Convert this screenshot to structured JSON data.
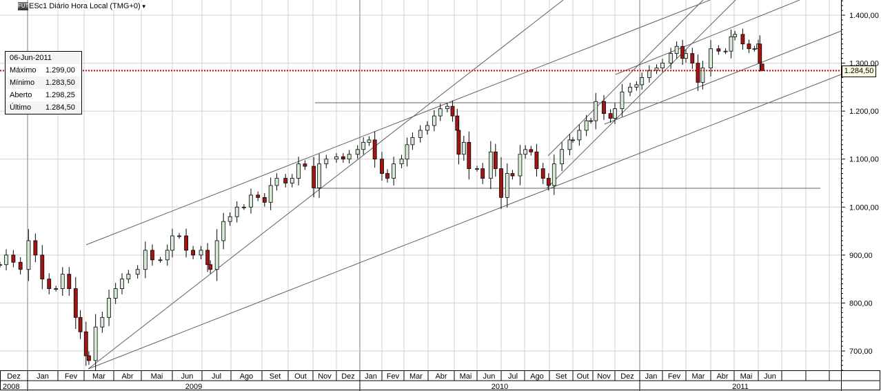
{
  "header": {
    "badge": "FUT",
    "title": "ESc1 Diário Hora Local (TMG+0)",
    "dropdown_icon": "caret-down-icon"
  },
  "info_box": {
    "date": "06-Jun-2011",
    "rows": [
      {
        "label": "Máximo",
        "value": "1.299,00"
      },
      {
        "label": "Mínimo",
        "value": "1.283,50"
      },
      {
        "label": "Aberto",
        "value": "1.298,25"
      },
      {
        "label": "Último",
        "value": "1.284,50"
      }
    ]
  },
  "current_price_label": "1.284,50",
  "colors": {
    "up": "#d6ead6",
    "down": "#a31515",
    "last_price_line": "#cc0000",
    "grid": "#d0d0d0",
    "trendline": "#606060"
  },
  "chart_data": {
    "type": "candlestick",
    "title": "ESc1 Diário Hora Local (TMG+0)",
    "ylim": [
      660,
      1431
    ],
    "y_ticks": [
      700,
      800,
      900,
      1000,
      1100,
      1200,
      1300,
      1400
    ],
    "y_tick_labels": [
      "700,00",
      "800,00",
      "900,00",
      "1.000,00",
      "1.100,00",
      "1.200,00",
      "1.300,00",
      "1.400,00"
    ],
    "grid": true,
    "last_price": 1284.5,
    "months": [
      {
        "key": "2008-12",
        "label": "Dez"
      },
      {
        "key": "2009-01",
        "label": "Jan"
      },
      {
        "key": "2009-02",
        "label": "Fev"
      },
      {
        "key": "2009-03",
        "label": "Mar"
      },
      {
        "key": "2009-04",
        "label": "Abr"
      },
      {
        "key": "2009-05",
        "label": "Mai"
      },
      {
        "key": "2009-06",
        "label": "Jun"
      },
      {
        "key": "2009-07",
        "label": "Jul"
      },
      {
        "key": "2009-08",
        "label": "Ago"
      },
      {
        "key": "2009-09",
        "label": "Set"
      },
      {
        "key": "2009-10",
        "label": "Out"
      },
      {
        "key": "2009-11",
        "label": "Nov"
      },
      {
        "key": "2009-12",
        "label": "Dez"
      },
      {
        "key": "2010-01",
        "label": "Jan"
      },
      {
        "key": "2010-02",
        "label": "Fev"
      },
      {
        "key": "2010-03",
        "label": "Mar"
      },
      {
        "key": "2010-04",
        "label": "Abr"
      },
      {
        "key": "2010-05",
        "label": "Mai"
      },
      {
        "key": "2010-06",
        "label": "Jun"
      },
      {
        "key": "2010-07",
        "label": "Jul"
      },
      {
        "key": "2010-08",
        "label": "Ago"
      },
      {
        "key": "2010-09",
        "label": "Set"
      },
      {
        "key": "2010-10",
        "label": "Out"
      },
      {
        "key": "2010-11",
        "label": "Nov"
      },
      {
        "key": "2010-12",
        "label": "Dez"
      },
      {
        "key": "2011-01",
        "label": "Jan"
      },
      {
        "key": "2011-02",
        "label": "Fev"
      },
      {
        "key": "2011-03",
        "label": "Mar"
      },
      {
        "key": "2011-04",
        "label": "Abr"
      },
      {
        "key": "2011-05",
        "label": "Mai"
      },
      {
        "key": "2011-06",
        "label": "Jun"
      },
      {
        "key": "2011-07",
        "label": ""
      },
      {
        "key": "2011-08",
        "label": ""
      },
      {
        "key": "2011-09",
        "label": ""
      }
    ],
    "years": [
      "2008",
      "2009",
      "2010",
      "2011"
    ],
    "bars": [
      [
        "2008-12-01",
        880
      ],
      [
        "2008-12-08",
        900
      ],
      [
        "2008-12-16",
        885
      ],
      [
        "2008-12-24",
        870
      ],
      [
        "2009-01-02",
        930
      ],
      [
        "2009-01-09",
        900
      ],
      [
        "2009-01-16",
        850
      ],
      [
        "2009-01-23",
        830
      ],
      [
        "2009-01-30",
        830
      ],
      [
        "2009-02-06",
        860
      ],
      [
        "2009-02-13",
        830
      ],
      [
        "2009-02-20",
        770
      ],
      [
        "2009-02-25",
        740
      ],
      [
        "2009-03-03",
        690
      ],
      [
        "2009-03-06",
        680
      ],
      [
        "2009-03-13",
        750
      ],
      [
        "2009-03-20",
        770
      ],
      [
        "2009-03-27",
        810
      ],
      [
        "2009-04-03",
        830
      ],
      [
        "2009-04-10",
        850
      ],
      [
        "2009-04-17",
        860
      ],
      [
        "2009-04-27",
        870
      ],
      [
        "2009-05-05",
        910
      ],
      [
        "2009-05-12",
        890
      ],
      [
        "2009-05-20",
        890
      ],
      [
        "2009-05-27",
        910
      ],
      [
        "2009-06-01",
        940
      ],
      [
        "2009-06-08",
        940
      ],
      [
        "2009-06-15",
        910
      ],
      [
        "2009-06-22",
        900
      ],
      [
        "2009-06-30",
        910
      ],
      [
        "2009-07-07",
        880
      ],
      [
        "2009-07-10",
        870
      ],
      [
        "2009-07-17",
        930
      ],
      [
        "2009-07-24",
        970
      ],
      [
        "2009-07-31",
        980
      ],
      [
        "2009-08-07",
        1000
      ],
      [
        "2009-08-14",
        1000
      ],
      [
        "2009-08-21",
        1025
      ],
      [
        "2009-08-28",
        1020
      ],
      [
        "2009-09-04",
        1010
      ],
      [
        "2009-09-11",
        1045
      ],
      [
        "2009-09-18",
        1060
      ],
      [
        "2009-09-28",
        1050
      ],
      [
        "2009-10-06",
        1060
      ],
      [
        "2009-10-14",
        1090
      ],
      [
        "2009-10-22",
        1085
      ],
      [
        "2009-11-02",
        1040
      ],
      [
        "2009-11-09",
        1090
      ],
      [
        "2009-11-18",
        1100
      ],
      [
        "2009-12-01",
        1105
      ],
      [
        "2009-12-10",
        1100
      ],
      [
        "2009-12-18",
        1110
      ],
      [
        "2009-12-29",
        1120
      ],
      [
        "2010-01-06",
        1135
      ],
      [
        "2010-01-14",
        1140
      ],
      [
        "2010-01-22",
        1100
      ],
      [
        "2010-02-01",
        1070
      ],
      [
        "2010-02-08",
        1060
      ],
      [
        "2010-02-16",
        1090
      ],
      [
        "2010-02-26",
        1100
      ],
      [
        "2010-03-05",
        1130
      ],
      [
        "2010-03-12",
        1145
      ],
      [
        "2010-03-22",
        1160
      ],
      [
        "2010-03-31",
        1170
      ],
      [
        "2010-04-08",
        1190
      ],
      [
        "2010-04-15",
        1205
      ],
      [
        "2010-04-23",
        1210
      ],
      [
        "2010-04-29",
        1190
      ],
      [
        "2010-05-05",
        1160
      ],
      [
        "2010-05-07",
        1110
      ],
      [
        "2010-05-14",
        1135
      ],
      [
        "2010-05-21",
        1080
      ],
      [
        "2010-06-01",
        1080
      ],
      [
        "2010-06-08",
        1060
      ],
      [
        "2010-06-18",
        1115
      ],
      [
        "2010-06-24",
        1080
      ],
      [
        "2010-07-01",
        1020
      ],
      [
        "2010-07-09",
        1070
      ],
      [
        "2010-07-16",
        1065
      ],
      [
        "2010-07-26",
        1110
      ],
      [
        "2010-08-02",
        1120
      ],
      [
        "2010-08-09",
        1115
      ],
      [
        "2010-08-16",
        1080
      ],
      [
        "2010-08-24",
        1060
      ],
      [
        "2010-08-31",
        1045
      ],
      [
        "2010-09-07",
        1090
      ],
      [
        "2010-09-17",
        1120
      ],
      [
        "2010-09-27",
        1140
      ],
      [
        "2010-10-01",
        1140
      ],
      [
        "2010-10-11",
        1160
      ],
      [
        "2010-10-22",
        1180
      ],
      [
        "2010-10-29",
        1180
      ],
      [
        "2010-11-05",
        1220
      ],
      [
        "2010-11-16",
        1195
      ],
      [
        "2010-11-25",
        1185
      ],
      [
        "2010-12-01",
        1205
      ],
      [
        "2010-12-10",
        1240
      ],
      [
        "2010-12-20",
        1250
      ],
      [
        "2010-12-28",
        1255
      ],
      [
        "2011-01-04",
        1270
      ],
      [
        "2011-01-14",
        1285
      ],
      [
        "2011-01-24",
        1290
      ],
      [
        "2011-02-01",
        1300
      ],
      [
        "2011-02-11",
        1320
      ],
      [
        "2011-02-18",
        1335
      ],
      [
        "2011-02-25",
        1310
      ],
      [
        "2011-03-01",
        1320
      ],
      [
        "2011-03-09",
        1300
      ],
      [
        "2011-03-16",
        1260
      ],
      [
        "2011-03-22",
        1290
      ],
      [
        "2011-04-01",
        1330
      ],
      [
        "2011-04-11",
        1325
      ],
      [
        "2011-04-20",
        1325
      ],
      [
        "2011-04-27",
        1355
      ],
      [
        "2011-05-02",
        1360
      ],
      [
        "2011-05-12",
        1340
      ],
      [
        "2011-05-20",
        1330
      ],
      [
        "2011-05-27",
        1330
      ],
      [
        "2011-06-01",
        1340
      ],
      [
        "2011-06-03",
        1300
      ]
    ],
    "last_bar": {
      "date": "2011-06-06",
      "open": 1298.25,
      "high": 1299.0,
      "low": 1283.5,
      "close": 1284.5
    }
  }
}
